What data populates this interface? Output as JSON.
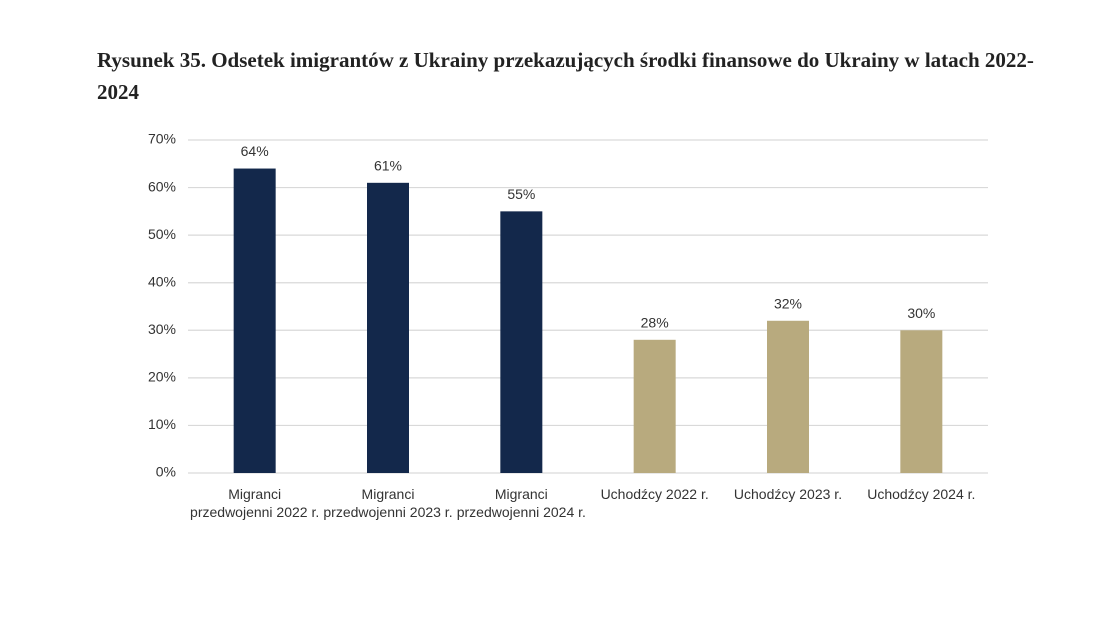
{
  "chart_data": {
    "type": "bar",
    "title": "Rysunek 35. Odsetek imigrantów z Ukrainy przekazujących środki finansowe do Ukrainy w latach 2022-2024",
    "categories": [
      "Migranci przedwojenni 2022 r.",
      "Migranci przedwojenni 2023 r.",
      "Migranci przedwojenni 2024 r.",
      "Uchodźcy 2022 r.",
      "Uchodźcy 2023 r.",
      "Uchodźcy 2024 r."
    ],
    "values": [
      64,
      61,
      55,
      28,
      32,
      30
    ],
    "value_labels": [
      "64%",
      "61%",
      "55%",
      "28%",
      "32%",
      "30%"
    ],
    "colors": [
      "#13284b",
      "#13284b",
      "#13284b",
      "#b8aa7e",
      "#b8aa7e",
      "#b8aa7e"
    ],
    "ylim": [
      0,
      70
    ],
    "yticks": [
      {
        "value": 0,
        "label": "0%"
      },
      {
        "value": 10,
        "label": "10%"
      },
      {
        "value": 20,
        "label": "20%"
      },
      {
        "value": 30,
        "label": "30%"
      },
      {
        "value": 40,
        "label": "40%"
      },
      {
        "value": 50,
        "label": "50%"
      },
      {
        "value": 60,
        "label": "60%"
      },
      {
        "value": 70,
        "label": "70%"
      }
    ],
    "grid": true
  }
}
